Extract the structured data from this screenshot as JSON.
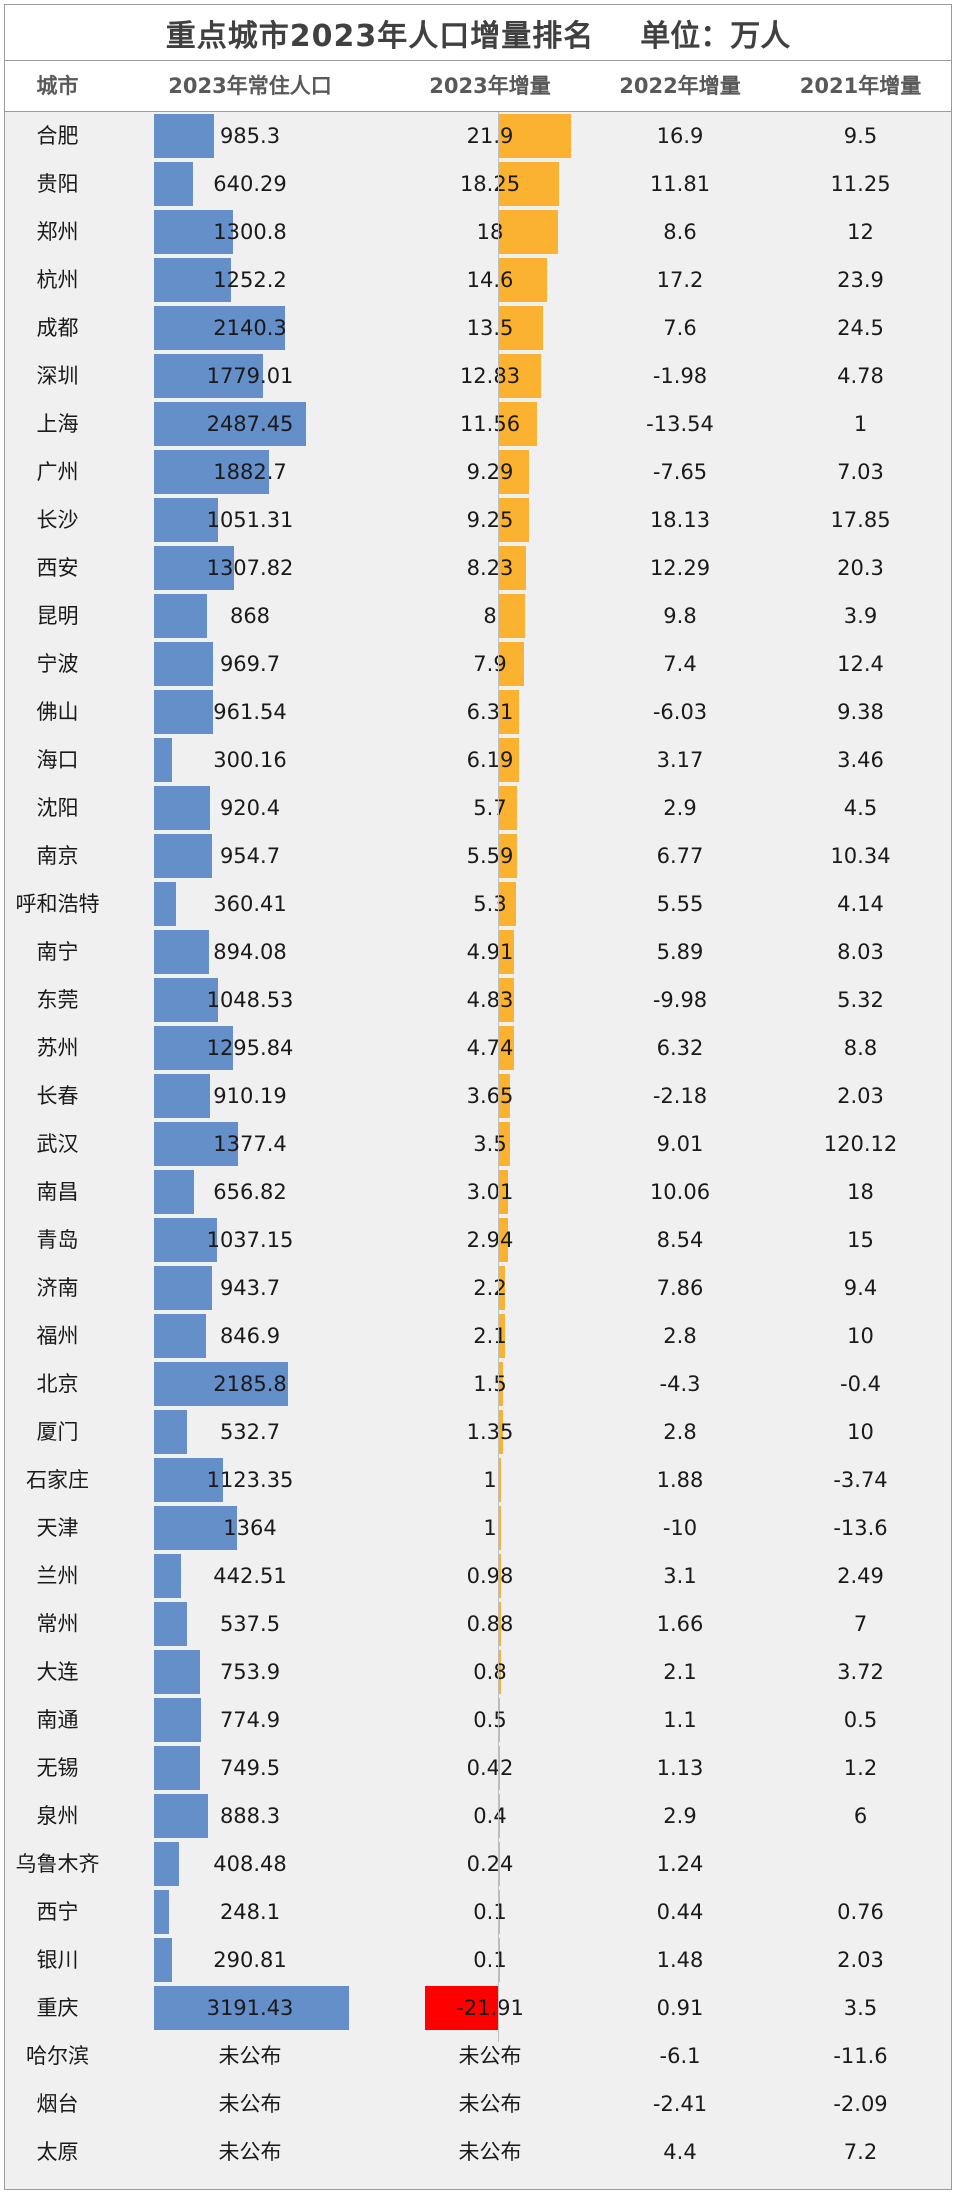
{
  "title": "重点城市2023年人口增量排名",
  "unit_label": "单位：万人",
  "headers": {
    "city": "城市",
    "pop2023": "2023年常住人口",
    "inc2023": "2023年增量",
    "inc2022": "2022年增量",
    "inc2021": "2021年增量"
  },
  "colors": {
    "population_bar": "#658fc9",
    "increase_bar": "#fbb230",
    "negative_bar": "#ff0000"
  },
  "chart_data": {
    "type": "table",
    "columns": [
      "城市",
      "2023年常住人口",
      "2023年增量",
      "2022年增量",
      "2021年增量"
    ],
    "rows": [
      {
        "city": "合肥",
        "pop2023": "985.3",
        "inc2023": "21.9",
        "inc2022": "16.9",
        "inc2021": "9.5"
      },
      {
        "city": "贵阳",
        "pop2023": "640.29",
        "inc2023": "18.25",
        "inc2022": "11.81",
        "inc2021": "11.25"
      },
      {
        "city": "郑州",
        "pop2023": "1300.8",
        "inc2023": "18",
        "inc2022": "8.6",
        "inc2021": "12"
      },
      {
        "city": "杭州",
        "pop2023": "1252.2",
        "inc2023": "14.6",
        "inc2022": "17.2",
        "inc2021": "23.9"
      },
      {
        "city": "成都",
        "pop2023": "2140.3",
        "inc2023": "13.5",
        "inc2022": "7.6",
        "inc2021": "24.5"
      },
      {
        "city": "深圳",
        "pop2023": "1779.01",
        "inc2023": "12.83",
        "inc2022": "-1.98",
        "inc2021": "4.78"
      },
      {
        "city": "上海",
        "pop2023": "2487.45",
        "inc2023": "11.56",
        "inc2022": "-13.54",
        "inc2021": "1"
      },
      {
        "city": "广州",
        "pop2023": "1882.7",
        "inc2023": "9.29",
        "inc2022": "-7.65",
        "inc2021": "7.03"
      },
      {
        "city": "长沙",
        "pop2023": "1051.31",
        "inc2023": "9.25",
        "inc2022": "18.13",
        "inc2021": "17.85"
      },
      {
        "city": "西安",
        "pop2023": "1307.82",
        "inc2023": "8.23",
        "inc2022": "12.29",
        "inc2021": "20.3"
      },
      {
        "city": "昆明",
        "pop2023": "868",
        "inc2023": "8",
        "inc2022": "9.8",
        "inc2021": "3.9"
      },
      {
        "city": "宁波",
        "pop2023": "969.7",
        "inc2023": "7.9",
        "inc2022": "7.4",
        "inc2021": "12.4"
      },
      {
        "city": "佛山",
        "pop2023": "961.54",
        "inc2023": "6.31",
        "inc2022": "-6.03",
        "inc2021": "9.38"
      },
      {
        "city": "海口",
        "pop2023": "300.16",
        "inc2023": "6.19",
        "inc2022": "3.17",
        "inc2021": "3.46"
      },
      {
        "city": "沈阳",
        "pop2023": "920.4",
        "inc2023": "5.7",
        "inc2022": "2.9",
        "inc2021": "4.5"
      },
      {
        "city": "南京",
        "pop2023": "954.7",
        "inc2023": "5.59",
        "inc2022": "6.77",
        "inc2021": "10.34"
      },
      {
        "city": "呼和浩特",
        "pop2023": "360.41",
        "inc2023": "5.3",
        "inc2022": "5.55",
        "inc2021": "4.14"
      },
      {
        "city": "南宁",
        "pop2023": "894.08",
        "inc2023": "4.91",
        "inc2022": "5.89",
        "inc2021": "8.03"
      },
      {
        "city": "东莞",
        "pop2023": "1048.53",
        "inc2023": "4.83",
        "inc2022": "-9.98",
        "inc2021": "5.32"
      },
      {
        "city": "苏州",
        "pop2023": "1295.84",
        "inc2023": "4.74",
        "inc2022": "6.32",
        "inc2021": "8.8"
      },
      {
        "city": "长春",
        "pop2023": "910.19",
        "inc2023": "3.65",
        "inc2022": "-2.18",
        "inc2021": "2.03"
      },
      {
        "city": "武汉",
        "pop2023": "1377.4",
        "inc2023": "3.5",
        "inc2022": "9.01",
        "inc2021": "120.12"
      },
      {
        "city": "南昌",
        "pop2023": "656.82",
        "inc2023": "3.01",
        "inc2022": "10.06",
        "inc2021": "18"
      },
      {
        "city": "青岛",
        "pop2023": "1037.15",
        "inc2023": "2.94",
        "inc2022": "8.54",
        "inc2021": "15"
      },
      {
        "city": "济南",
        "pop2023": "943.7",
        "inc2023": "2.2",
        "inc2022": "7.86",
        "inc2021": "9.4"
      },
      {
        "city": "福州",
        "pop2023": "846.9",
        "inc2023": "2.1",
        "inc2022": "2.8",
        "inc2021": "10"
      },
      {
        "city": "北京",
        "pop2023": "2185.8",
        "inc2023": "1.5",
        "inc2022": "-4.3",
        "inc2021": "-0.4"
      },
      {
        "city": "厦门",
        "pop2023": "532.7",
        "inc2023": "1.35",
        "inc2022": "2.8",
        "inc2021": "10"
      },
      {
        "city": "石家庄",
        "pop2023": "1123.35",
        "inc2023": "1",
        "inc2022": "1.88",
        "inc2021": "-3.74"
      },
      {
        "city": "天津",
        "pop2023": "1364",
        "inc2023": "1",
        "inc2022": "-10",
        "inc2021": "-13.6"
      },
      {
        "city": "兰州",
        "pop2023": "442.51",
        "inc2023": "0.98",
        "inc2022": "3.1",
        "inc2021": "2.49"
      },
      {
        "city": "常州",
        "pop2023": "537.5",
        "inc2023": "0.88",
        "inc2022": "1.66",
        "inc2021": "7"
      },
      {
        "city": "大连",
        "pop2023": "753.9",
        "inc2023": "0.8",
        "inc2022": "2.1",
        "inc2021": "3.72"
      },
      {
        "city": "南通",
        "pop2023": "774.9",
        "inc2023": "0.5",
        "inc2022": "1.1",
        "inc2021": "0.5"
      },
      {
        "city": "无锡",
        "pop2023": "749.5",
        "inc2023": "0.42",
        "inc2022": "1.13",
        "inc2021": "1.2"
      },
      {
        "city": "泉州",
        "pop2023": "888.3",
        "inc2023": "0.4",
        "inc2022": "2.9",
        "inc2021": "6"
      },
      {
        "city": "乌鲁木齐",
        "pop2023": "408.48",
        "inc2023": "0.24",
        "inc2022": "1.24",
        "inc2021": ""
      },
      {
        "city": "西宁",
        "pop2023": "248.1",
        "inc2023": "0.1",
        "inc2022": "0.44",
        "inc2021": "0.76"
      },
      {
        "city": "银川",
        "pop2023": "290.81",
        "inc2023": "0.1",
        "inc2022": "1.48",
        "inc2021": "2.03"
      },
      {
        "city": "重庆",
        "pop2023": "3191.43",
        "inc2023": "-21.91",
        "inc2022": "0.91",
        "inc2021": "3.5"
      },
      {
        "city": "哈尔滨",
        "pop2023": "未公布",
        "inc2023": "未公布",
        "inc2022": "-6.1",
        "inc2021": "-11.6"
      },
      {
        "city": "烟台",
        "pop2023": "未公布",
        "inc2023": "未公布",
        "inc2022": "-2.41",
        "inc2021": "-2.09"
      },
      {
        "city": "太原",
        "pop2023": "未公布",
        "inc2023": "未公布",
        "inc2022": "4.4",
        "inc2021": "7.2"
      }
    ]
  }
}
